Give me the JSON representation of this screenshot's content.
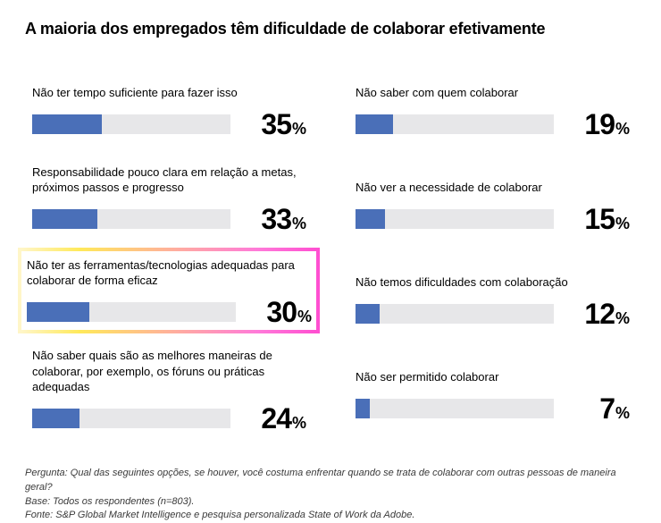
{
  "title": "A maioria dos empregados têm dificuldade de colaborar efetivamente",
  "chart": {
    "type": "bar",
    "bar_color": "#4a6fb8",
    "track_color": "#e7e7e9",
    "text_color": "#000000",
    "title_fontsize": 18,
    "label_fontsize": 13,
    "value_fontsize": 32,
    "percent_fontsize": 18,
    "track_height": 22,
    "value_suffix": "%",
    "xlim": [
      0,
      100
    ],
    "highlight_gradient": [
      "#fff6c9",
      "#ffe95a",
      "#ff7ad9",
      "#ff4fd1"
    ],
    "background_color": "#ffffff"
  },
  "left": [
    {
      "label": "Não ter tempo suficiente para fazer isso",
      "value": 35,
      "highlighted": false
    },
    {
      "label": "Responsabilidade pouco clara em relação a metas, próximos passos e progresso",
      "value": 33,
      "highlighted": false
    },
    {
      "label": "Não ter as ferramentas/tecnologias adequadas para colaborar de forma eficaz",
      "value": 30,
      "highlighted": true
    },
    {
      "label": "Não saber quais são as melhores maneiras de colaborar, por exemplo, os fóruns ou práticas adequadas",
      "value": 24,
      "highlighted": false
    }
  ],
  "right": [
    {
      "label": "Não saber com quem colaborar",
      "value": 19,
      "highlighted": false
    },
    {
      "label": "Não ver a necessidade de colaborar",
      "value": 15,
      "highlighted": false
    },
    {
      "label": "Não temos dificuldades com colaboração",
      "value": 12,
      "highlighted": false
    },
    {
      "label": "Não ser permitido colaborar",
      "value": 7,
      "highlighted": false
    }
  ],
  "footer": {
    "line1": "Pergunta: Qual das seguintes opções, se houver, você costuma enfrentar quando se trata de colaborar com outras pessoas de maneira geral?",
    "line2": "Base: Todos os respondentes (n=803).",
    "line3": "Fonte: S&P Global Market Intelligence e pesquisa personalizada State of Work da Adobe."
  }
}
